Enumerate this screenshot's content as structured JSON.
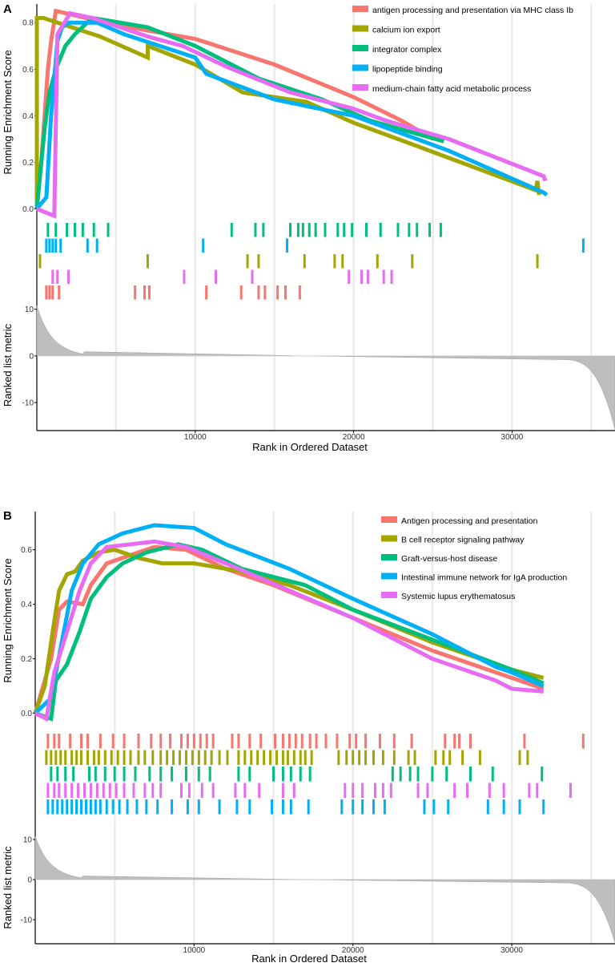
{
  "chart_data": [
    {
      "type": "line",
      "panel_label": "A",
      "ylabel": "Running Enrichment Score",
      "yticks": [
        0.0,
        0.2,
        0.4,
        0.6,
        0.8
      ],
      "ylim": [
        -0.05,
        0.88
      ],
      "xlim": [
        0,
        36500
      ],
      "series": [
        {
          "name": "antigen processing and presentation via MHC class Ib",
          "color": "#F8766D",
          "points": [
            [
              0,
              0
            ],
            [
              300,
              0.22
            ],
            [
              700,
              0.6
            ],
            [
              900,
              0.72
            ],
            [
              1200,
              0.85
            ],
            [
              5000,
              0.79
            ],
            [
              10000,
              0.73
            ],
            [
              15000,
              0.62
            ],
            [
              20000,
              0.48
            ],
            [
              23000,
              0.38
            ],
            [
              25000,
              0.3
            ]
          ]
        },
        {
          "name": "calcium ion export",
          "color": "#A3A500",
          "points": [
            [
              0,
              0
            ],
            [
              0,
              0.82
            ],
            [
              400,
              0.82
            ],
            [
              4000,
              0.74
            ],
            [
              7000,
              0.65
            ],
            [
              7000,
              0.7
            ],
            [
              10000,
              0.62
            ],
            [
              13000,
              0.5
            ],
            [
              17000,
              0.46
            ],
            [
              20000,
              0.37
            ],
            [
              24000,
              0.27
            ],
            [
              31500,
              0.08
            ],
            [
              31600,
              0.12
            ],
            [
              31700,
              0.06
            ]
          ]
        },
        {
          "name": "integrator complex",
          "color": "#00BF7D",
          "points": [
            [
              0,
              0
            ],
            [
              500,
              0.35
            ],
            [
              800,
              0.5
            ],
            [
              1200,
              0.6
            ],
            [
              1800,
              0.7
            ],
            [
              2400,
              0.75
            ],
            [
              3500,
              0.82
            ],
            [
              7000,
              0.78
            ],
            [
              10000,
              0.7
            ],
            [
              14000,
              0.56
            ],
            [
              18000,
              0.47
            ],
            [
              21000,
              0.38
            ],
            [
              25700,
              0.29
            ]
          ]
        },
        {
          "name": "lipopeptide binding",
          "color": "#00B0F6",
          "points": [
            [
              0,
              0
            ],
            [
              600,
              0.05
            ],
            [
              900,
              0.4
            ],
            [
              1300,
              0.72
            ],
            [
              1600,
              0.78
            ],
            [
              2000,
              0.8
            ],
            [
              3800,
              0.8
            ],
            [
              5500,
              0.75
            ],
            [
              10000,
              0.65
            ],
            [
              10700,
              0.58
            ],
            [
              15000,
              0.47
            ],
            [
              20000,
              0.4
            ],
            [
              26000,
              0.25
            ],
            [
              32000,
              0.07
            ],
            [
              32200,
              0.06
            ]
          ]
        },
        {
          "name": "medium-chain fatty acid metabolic process",
          "color": "#E76BF3",
          "points": [
            [
              0,
              0
            ],
            [
              0,
              0
            ],
            [
              1100,
              -0.03
            ],
            [
              1300,
              0.75
            ],
            [
              2100,
              0.84
            ],
            [
              3500,
              0.82
            ],
            [
              7000,
              0.74
            ],
            [
              9200,
              0.7
            ],
            [
              12000,
              0.61
            ],
            [
              16000,
              0.5
            ],
            [
              20000,
              0.43
            ],
            [
              22000,
              0.38
            ],
            [
              26000,
              0.3
            ],
            [
              32000,
              0.14
            ],
            [
              32100,
              0.12
            ]
          ]
        }
      ],
      "rank_ticks": [
        {
          "name": "integrator complex",
          "color": "#00BF7D",
          "positions": [
            700,
            1200,
            1900,
            2400,
            2900,
            3600,
            4500,
            12300,
            13800,
            14300,
            16000,
            16500,
            16800,
            17200,
            17600,
            18200,
            19000,
            19400,
            19900,
            20800,
            21700,
            22800,
            23500,
            24000,
            24800,
            25500
          ]
        },
        {
          "name": "lipopeptide binding",
          "color": "#00B0F6",
          "positions": [
            600,
            800,
            1000,
            1200,
            1500,
            3200,
            3800,
            10500,
            15800,
            34500
          ]
        },
        {
          "name": "calcium ion export",
          "color": "#A3A500",
          "positions": [
            200,
            7000,
            13300,
            14000,
            16900,
            18800,
            19300,
            21500,
            23700,
            31600
          ]
        },
        {
          "name": "medium-chain fatty acid metabolic process",
          "color": "#E76BF3",
          "positions": [
            1000,
            1300,
            2000,
            9300,
            11300,
            13600,
            19700,
            20500,
            20900,
            21900,
            22400
          ]
        },
        {
          "name": "antigen processing and presentation via MHC class Ib",
          "color": "#F8766D",
          "positions": [
            600,
            800,
            1000,
            1400,
            6200,
            6800,
            7100,
            10700,
            12900,
            14000,
            14400,
            15200,
            15700,
            16600
          ]
        }
      ],
      "metric": {
        "ylabel": "Ranked list metric",
        "yticks": [
          10,
          0,
          -10
        ],
        "ylim": [
          -16,
          12
        ],
        "xlabel": "Rank in Ordered Dataset",
        "xticks": [
          10000,
          20000,
          30000
        ]
      }
    },
    {
      "type": "line",
      "panel_label": "B",
      "ylabel": "Running Enrichment Score",
      "yticks": [
        0.0,
        0.2,
        0.4,
        0.6
      ],
      "ylim": [
        -0.06,
        0.74
      ],
      "xlim": [
        0,
        36500
      ],
      "series": [
        {
          "name": "Antigen processing and presentation",
          "color": "#F8766D",
          "points": [
            [
              0,
              0
            ],
            [
              500,
              0.1
            ],
            [
              1000,
              0.2
            ],
            [
              1500,
              0.38
            ],
            [
              2000,
              0.41
            ],
            [
              3000,
              0.4
            ],
            [
              3500,
              0.47
            ],
            [
              4500,
              0.55
            ],
            [
              6000,
              0.58
            ],
            [
              7500,
              0.61
            ],
            [
              9500,
              0.6
            ],
            [
              12000,
              0.53
            ],
            [
              15000,
              0.47
            ],
            [
              20000,
              0.35
            ],
            [
              25000,
              0.23
            ],
            [
              30000,
              0.13
            ],
            [
              32000,
              0.09
            ]
          ]
        },
        {
          "name": "B cell receptor signaling pathway",
          "color": "#A3A500",
          "points": [
            [
              0,
              0
            ],
            [
              600,
              0.1
            ],
            [
              1100,
              0.3
            ],
            [
              1500,
              0.45
            ],
            [
              2000,
              0.51
            ],
            [
              2500,
              0.52
            ],
            [
              3000,
              0.56
            ],
            [
              4000,
              0.59
            ],
            [
              5000,
              0.6
            ],
            [
              6500,
              0.57
            ],
            [
              8000,
              0.55
            ],
            [
              10000,
              0.55
            ],
            [
              13000,
              0.52
            ],
            [
              16000,
              0.47
            ],
            [
              20000,
              0.38
            ],
            [
              25000,
              0.26
            ],
            [
              30000,
              0.16
            ],
            [
              32000,
              0.13
            ]
          ]
        },
        {
          "name": "Graft-versus-host disease",
          "color": "#00BF7D",
          "points": [
            [
              0,
              0
            ],
            [
              1000,
              -0.02
            ],
            [
              1300,
              0.12
            ],
            [
              2000,
              0.18
            ],
            [
              2800,
              0.3
            ],
            [
              3500,
              0.42
            ],
            [
              4500,
              0.5
            ],
            [
              5500,
              0.55
            ],
            [
              7000,
              0.59
            ],
            [
              9000,
              0.62
            ],
            [
              10500,
              0.6
            ],
            [
              13000,
              0.53
            ],
            [
              17000,
              0.47
            ],
            [
              20000,
              0.38
            ],
            [
              25000,
              0.27
            ],
            [
              30000,
              0.16
            ],
            [
              32000,
              0.11
            ]
          ]
        },
        {
          "name": "Intestinal immune network for IgA production",
          "color": "#00B0F6",
          "points": [
            [
              0,
              0
            ],
            [
              900,
              0.05
            ],
            [
              1300,
              0.15
            ],
            [
              1800,
              0.3
            ],
            [
              2300,
              0.45
            ],
            [
              3000,
              0.55
            ],
            [
              4000,
              0.62
            ],
            [
              5500,
              0.66
            ],
            [
              7500,
              0.69
            ],
            [
              10000,
              0.68
            ],
            [
              12000,
              0.62
            ],
            [
              16000,
              0.53
            ],
            [
              20000,
              0.42
            ],
            [
              25000,
              0.29
            ],
            [
              29000,
              0.17
            ],
            [
              30000,
              0.15
            ],
            [
              32000,
              0.1
            ]
          ]
        },
        {
          "name": "Systemic lupus erythematosus",
          "color": "#E76BF3",
          "points": [
            [
              0,
              0
            ],
            [
              700,
              -0.02
            ],
            [
              1200,
              0.15
            ],
            [
              2000,
              0.3
            ],
            [
              2800,
              0.45
            ],
            [
              3500,
              0.55
            ],
            [
              4500,
              0.61
            ],
            [
              6000,
              0.62
            ],
            [
              7500,
              0.63
            ],
            [
              9500,
              0.61
            ],
            [
              12000,
              0.55
            ],
            [
              16000,
              0.45
            ],
            [
              20000,
              0.35
            ],
            [
              25000,
              0.2
            ],
            [
              29000,
              0.12
            ],
            [
              30000,
              0.09
            ],
            [
              32000,
              0.08
            ]
          ]
        }
      ],
      "rank_ticks": [
        {
          "name": "Antigen processing and presentation",
          "color": "#F8766D",
          "positions": [
            800,
            1200,
            1500,
            2200,
            2900,
            3300,
            4100,
            4900,
            5600,
            6500,
            7300,
            7900,
            8500,
            9200,
            9600,
            10000,
            10400,
            10800,
            11200,
            12400,
            12800,
            13500,
            14200,
            15100,
            15600,
            16000,
            16400,
            16800,
            17300,
            17700,
            18300,
            19000,
            19800,
            20200,
            20800,
            21700,
            22600,
            23700,
            25800,
            26400,
            26700,
            27400,
            30800,
            34500
          ]
        },
        {
          "name": "B cell receptor signaling pathway",
          "color": "#A3A500",
          "positions": [
            700,
            1000,
            1300,
            1600,
            1900,
            2300,
            2600,
            2900,
            3300,
            3700,
            4000,
            4400,
            4800,
            5200,
            5600,
            6000,
            6500,
            6900,
            7400,
            7900,
            8300,
            8700,
            9100,
            9500,
            9900,
            10300,
            10700,
            11100,
            11600,
            12100,
            12800,
            13200,
            13600,
            14000,
            14400,
            14800,
            15200,
            15600,
            15900,
            16300,
            16700,
            17000,
            17400,
            19100,
            19600,
            20000,
            20400,
            20800,
            21300,
            21900,
            22600,
            23500,
            23900,
            25200,
            25700,
            26100,
            26900,
            28000,
            30500,
            31000
          ]
        },
        {
          "name": "Graft-versus-host disease",
          "color": "#00BF7D",
          "positions": [
            1000,
            1400,
            1900,
            2400,
            3400,
            3800,
            4400,
            5000,
            5600,
            6300,
            7200,
            7900,
            8600,
            9500,
            10300,
            11000,
            12800,
            13500,
            15000,
            15600,
            16100,
            16700,
            17300,
            22500,
            23000,
            23600,
            24100,
            25000,
            25900,
            27400,
            28800,
            31900
          ]
        },
        {
          "name": "Systemic lupus erythematosus",
          "color": "#E76BF3",
          "positions": [
            800,
            1200,
            1500,
            1900,
            2300,
            2700,
            3100,
            3500,
            3900,
            4300,
            4700,
            5100,
            5600,
            6200,
            6900,
            7400,
            7900,
            9200,
            9700,
            10500,
            11200,
            12600,
            13200,
            14100,
            15600,
            16300,
            19500,
            20000,
            20600,
            21400,
            21900,
            22400,
            24100,
            24700,
            26400,
            27200,
            28600,
            29500,
            31100,
            31600,
            33700
          ]
        },
        {
          "name": "Intestinal immune network for IgA production",
          "color": "#00B0F6",
          "positions": [
            800,
            1100,
            1400,
            1700,
            2000,
            2300,
            2600,
            2900,
            3200,
            3500,
            3800,
            4100,
            4500,
            4900,
            5300,
            5800,
            6400,
            7000,
            7700,
            8600,
            9600,
            10300,
            11600,
            12700,
            13500,
            14900,
            15600,
            16100,
            17200,
            19300,
            20000,
            20600,
            21300,
            22000,
            24500,
            25100,
            26000,
            28500,
            29500,
            30500,
            32000
          ]
        }
      ],
      "metric": {
        "ylabel": "Ranked list metric",
        "yticks": [
          10,
          0,
          -10
        ],
        "ylim": [
          -16,
          12
        ],
        "xlabel": "Rank in Ordered Dataset",
        "xticks": [
          10000,
          20000,
          30000
        ]
      }
    }
  ]
}
